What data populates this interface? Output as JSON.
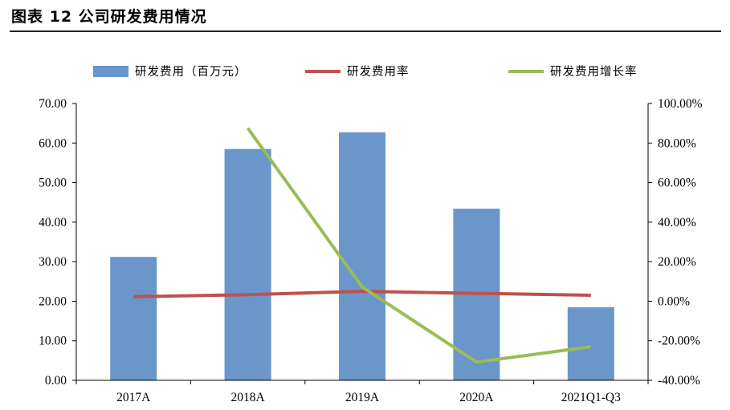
{
  "figure_title": "图表 12 公司研发费用情况",
  "chart_data": {
    "type": "bar",
    "categories": [
      "2017A",
      "2018A",
      "2019A",
      "2020A",
      "2021Q1-Q3"
    ],
    "series": [
      {
        "name": "研发费用（百万元）",
        "kind": "bar",
        "axis": "left",
        "color": "#6a96ca",
        "values": [
          31.2,
          58.5,
          62.7,
          43.4,
          18.5
        ]
      },
      {
        "name": "研发费用率",
        "kind": "line",
        "axis": "right",
        "color": "#c0504d",
        "values": [
          2.3,
          3.3,
          5.0,
          4.0,
          3.0
        ]
      },
      {
        "name": "研发费用增长率",
        "kind": "line",
        "axis": "right",
        "color": "#9bbb59",
        "values": [
          null,
          87.5,
          7.2,
          -30.8,
          -23.0
        ]
      }
    ],
    "left_axis": {
      "min": 0,
      "max": 70,
      "step": 10,
      "ticks": [
        "0.00",
        "10.00",
        "20.00",
        "30.00",
        "40.00",
        "50.00",
        "60.00",
        "70.00"
      ]
    },
    "right_axis": {
      "min": -40,
      "max": 100,
      "step": 20,
      "ticks": [
        "-40.00%",
        "-20.00%",
        "0.00%",
        "20.00%",
        "40.00%",
        "60.00%",
        "80.00%",
        "100.00%"
      ]
    },
    "grid": false,
    "legend_position": "top"
  }
}
